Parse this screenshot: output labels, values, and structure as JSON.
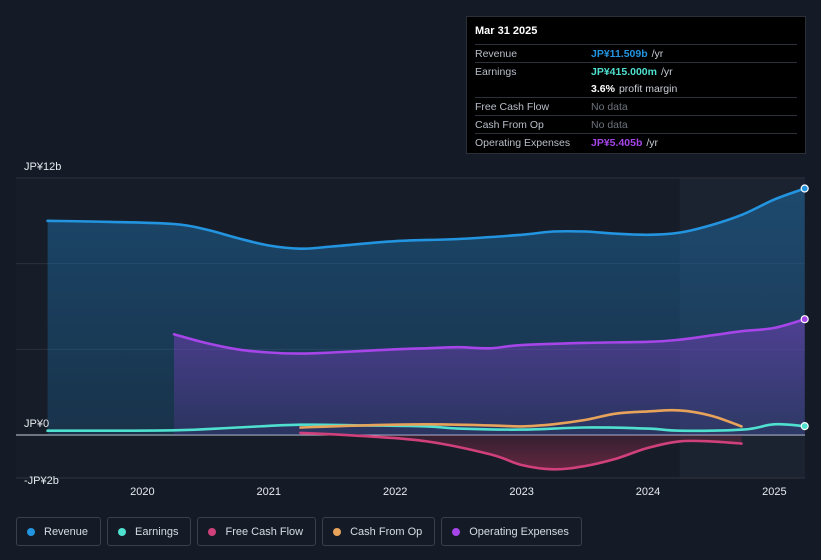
{
  "chart_data": {
    "type": "area",
    "y_axis_labels": [
      "JP¥12b",
      "JP¥0",
      "-JP¥2b"
    ],
    "ylim": [
      -2,
      12
    ],
    "x_tick_labels": [
      "2020",
      "2021",
      "2022",
      "2023",
      "2024",
      "2025"
    ],
    "x_ticks": [
      2020,
      2021,
      2022,
      2023,
      2024,
      2025
    ],
    "xlim": [
      2019.0,
      2025.24
    ],
    "forecast_start": 2024.25,
    "series": [
      {
        "name": "Revenue",
        "color": "#2394df",
        "fill": true,
        "points": [
          [
            2019.25,
            10.0
          ],
          [
            2019.75,
            9.95
          ],
          [
            2020.25,
            9.85
          ],
          [
            2020.5,
            9.6
          ],
          [
            2020.75,
            9.2
          ],
          [
            2021.0,
            8.85
          ],
          [
            2021.25,
            8.7
          ],
          [
            2021.5,
            8.8
          ],
          [
            2022.0,
            9.05
          ],
          [
            2022.5,
            9.15
          ],
          [
            2023.0,
            9.35
          ],
          [
            2023.25,
            9.5
          ],
          [
            2023.5,
            9.5
          ],
          [
            2023.75,
            9.4
          ],
          [
            2024.0,
            9.35
          ],
          [
            2024.25,
            9.45
          ],
          [
            2024.5,
            9.8
          ],
          [
            2024.75,
            10.3
          ],
          [
            2025.0,
            11.0
          ],
          [
            2025.24,
            11.509
          ]
        ]
      },
      {
        "name": "Operating Expenses",
        "color": "#a645e8",
        "fill": true,
        "points": [
          [
            2020.25,
            4.7
          ],
          [
            2020.5,
            4.3
          ],
          [
            2020.75,
            4.0
          ],
          [
            2021.0,
            3.85
          ],
          [
            2021.25,
            3.8
          ],
          [
            2021.5,
            3.85
          ],
          [
            2022.0,
            4.0
          ],
          [
            2022.25,
            4.05
          ],
          [
            2022.5,
            4.1
          ],
          [
            2022.75,
            4.05
          ],
          [
            2023.0,
            4.2
          ],
          [
            2023.5,
            4.3
          ],
          [
            2024.0,
            4.35
          ],
          [
            2024.25,
            4.45
          ],
          [
            2024.5,
            4.65
          ],
          [
            2024.75,
            4.85
          ],
          [
            2025.0,
            5.0
          ],
          [
            2025.24,
            5.405
          ]
        ]
      },
      {
        "name": "Earnings",
        "color": "#4fe0cf",
        "fill": false,
        "points": [
          [
            2019.25,
            0.2
          ],
          [
            2020.25,
            0.22
          ],
          [
            2020.75,
            0.35
          ],
          [
            2021.25,
            0.48
          ],
          [
            2021.75,
            0.45
          ],
          [
            2022.25,
            0.4
          ],
          [
            2022.5,
            0.3
          ],
          [
            2023.0,
            0.25
          ],
          [
            2023.5,
            0.35
          ],
          [
            2024.0,
            0.3
          ],
          [
            2024.25,
            0.2
          ],
          [
            2024.75,
            0.25
          ],
          [
            2025.0,
            0.5
          ],
          [
            2025.24,
            0.415
          ]
        ]
      },
      {
        "name": "Cash From Op",
        "color": "#e8a35b",
        "fill": false,
        "points": [
          [
            2021.25,
            0.35
          ],
          [
            2021.75,
            0.45
          ],
          [
            2022.25,
            0.5
          ],
          [
            2022.75,
            0.45
          ],
          [
            2023.0,
            0.4
          ],
          [
            2023.25,
            0.5
          ],
          [
            2023.5,
            0.7
          ],
          [
            2023.75,
            1.0
          ],
          [
            2024.0,
            1.1
          ],
          [
            2024.25,
            1.15
          ],
          [
            2024.5,
            0.9
          ],
          [
            2024.74,
            0.4
          ]
        ]
      },
      {
        "name": "Free Cash Flow",
        "color": "#d0407a",
        "fill": true,
        "points": [
          [
            2021.25,
            0.1
          ],
          [
            2021.75,
            -0.05
          ],
          [
            2022.25,
            -0.3
          ],
          [
            2022.75,
            -0.9
          ],
          [
            2023.0,
            -1.4
          ],
          [
            2023.25,
            -1.6
          ],
          [
            2023.5,
            -1.45
          ],
          [
            2023.75,
            -1.1
          ],
          [
            2024.0,
            -0.6
          ],
          [
            2024.25,
            -0.3
          ],
          [
            2024.5,
            -0.3
          ],
          [
            2024.74,
            -0.4
          ]
        ]
      }
    ],
    "end_markers": [
      "Revenue",
      "Operating Expenses",
      "Earnings"
    ]
  },
  "tooltip": {
    "date": "Mar 31 2025",
    "rows": [
      {
        "label": "Revenue",
        "value": "JP¥11.509b",
        "unit": "/yr",
        "color": "#2394df"
      },
      {
        "label": "Earnings",
        "value": "JP¥415.000m",
        "unit": "/yr",
        "color": "#4fe0cf"
      },
      {
        "label": "",
        "value": "3.6%",
        "unit": "profit margin",
        "color": "#ffffff"
      },
      {
        "label": "Free Cash Flow",
        "value": "No data",
        "unit": "",
        "color": "nodata"
      },
      {
        "label": "Cash From Op",
        "value": "No data",
        "unit": "",
        "color": "nodata"
      },
      {
        "label": "Operating Expenses",
        "value": "JP¥5.405b",
        "unit": "/yr",
        "color": "#a645e8"
      }
    ]
  },
  "legend": [
    {
      "label": "Revenue",
      "color": "#2394df"
    },
    {
      "label": "Earnings",
      "color": "#4fe0cf"
    },
    {
      "label": "Free Cash Flow",
      "color": "#d0407a"
    },
    {
      "label": "Cash From Op",
      "color": "#e8a35b"
    },
    {
      "label": "Operating Expenses",
      "color": "#a645e8"
    }
  ]
}
